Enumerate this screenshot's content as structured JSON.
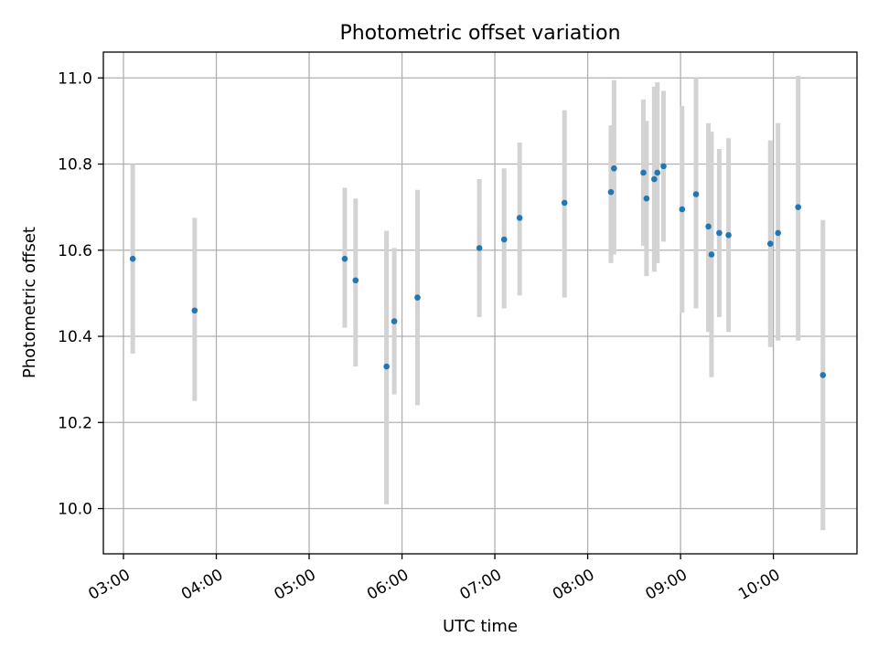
{
  "chart_data": {
    "type": "scatter",
    "title": "Photometric offset variation",
    "xlabel": "UTC time",
    "ylabel": "Photometric offset",
    "x_axis_type": "time",
    "xlim": [
      "02:47",
      "10:54"
    ],
    "ylim": [
      9.895,
      11.06
    ],
    "x_ticks": [
      "03:00",
      "04:00",
      "05:00",
      "06:00",
      "07:00",
      "08:00",
      "09:00",
      "10:00"
    ],
    "y_ticks": [
      "10.0",
      "10.2",
      "10.4",
      "10.6",
      "10.8",
      "11.0"
    ],
    "grid": true,
    "marker_color": "#1f77b4",
    "errorbar_color": "#d3d3d3",
    "points": [
      {
        "t": "03:06",
        "y": 10.58,
        "ylo": 10.36,
        "yhi": 10.8
      },
      {
        "t": "03:46",
        "y": 10.46,
        "ylo": 10.25,
        "yhi": 10.675
      },
      {
        "t": "05:23",
        "y": 10.58,
        "ylo": 10.42,
        "yhi": 10.745
      },
      {
        "t": "05:30",
        "y": 10.53,
        "ylo": 10.33,
        "yhi": 10.72
      },
      {
        "t": "05:50",
        "y": 10.33,
        "ylo": 10.01,
        "yhi": 10.645
      },
      {
        "t": "05:55",
        "y": 10.435,
        "ylo": 10.265,
        "yhi": 10.605
      },
      {
        "t": "06:10",
        "y": 10.49,
        "ylo": 10.24,
        "yhi": 10.74
      },
      {
        "t": "06:50",
        "y": 10.605,
        "ylo": 10.445,
        "yhi": 10.765
      },
      {
        "t": "07:06",
        "y": 10.625,
        "ylo": 10.465,
        "yhi": 10.79
      },
      {
        "t": "07:16",
        "y": 10.675,
        "ylo": 10.495,
        "yhi": 10.85
      },
      {
        "t": "07:45",
        "y": 10.71,
        "ylo": 10.49,
        "yhi": 10.925
      },
      {
        "t": "08:15",
        "y": 10.735,
        "ylo": 10.57,
        "yhi": 10.89
      },
      {
        "t": "08:17",
        "y": 10.79,
        "ylo": 10.59,
        "yhi": 10.995
      },
      {
        "t": "08:36",
        "y": 10.78,
        "ylo": 10.61,
        "yhi": 10.95
      },
      {
        "t": "08:38",
        "y": 10.72,
        "ylo": 10.54,
        "yhi": 10.9
      },
      {
        "t": "08:43",
        "y": 10.765,
        "ylo": 10.55,
        "yhi": 10.98
      },
      {
        "t": "08:45",
        "y": 10.78,
        "ylo": 10.57,
        "yhi": 10.99
      },
      {
        "t": "08:49",
        "y": 10.795,
        "ylo": 10.62,
        "yhi": 10.97
      },
      {
        "t": "09:01",
        "y": 10.695,
        "ylo": 10.455,
        "yhi": 10.935
      },
      {
        "t": "09:10",
        "y": 10.73,
        "ylo": 10.465,
        "yhi": 11.0
      },
      {
        "t": "09:18",
        "y": 10.655,
        "ylo": 10.41,
        "yhi": 10.895
      },
      {
        "t": "09:20",
        "y": 10.59,
        "ylo": 10.305,
        "yhi": 10.875
      },
      {
        "t": "09:25",
        "y": 10.64,
        "ylo": 10.445,
        "yhi": 10.835
      },
      {
        "t": "09:31",
        "y": 10.635,
        "ylo": 10.41,
        "yhi": 10.86
      },
      {
        "t": "09:58",
        "y": 10.615,
        "ylo": 10.375,
        "yhi": 10.855
      },
      {
        "t": "10:03",
        "y": 10.64,
        "ylo": 10.39,
        "yhi": 10.895
      },
      {
        "t": "10:16",
        "y": 10.7,
        "ylo": 10.39,
        "yhi": 11.005
      },
      {
        "t": "10:32",
        "y": 10.31,
        "ylo": 9.95,
        "yhi": 10.67
      }
    ]
  }
}
